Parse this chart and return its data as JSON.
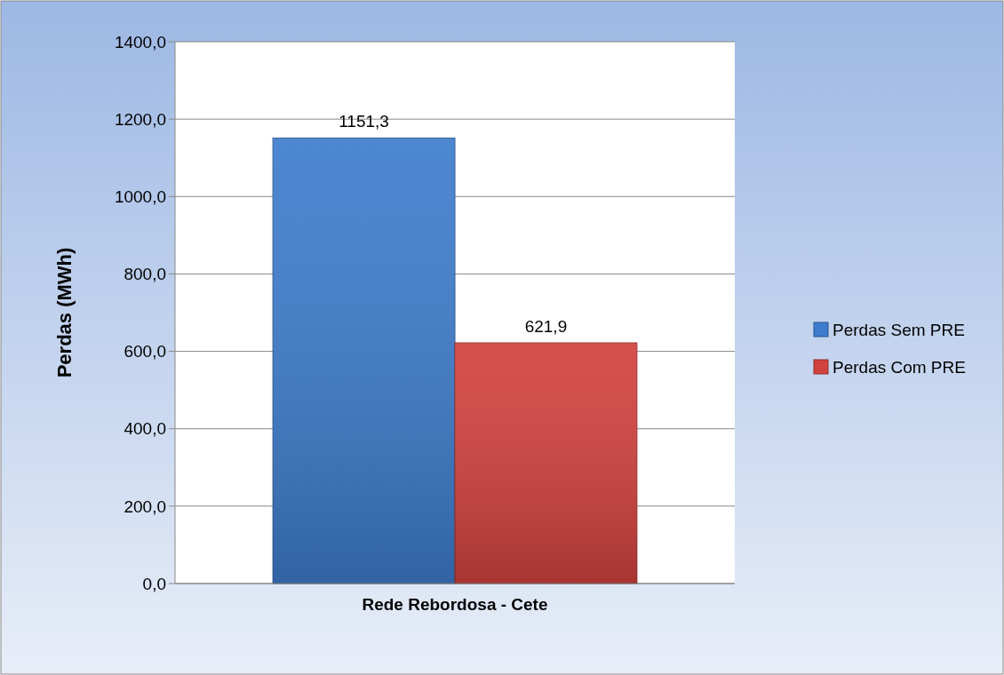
{
  "chart_data": {
    "type": "bar",
    "ylabel": "Perdas (MWh)",
    "categories": [
      "Rede Rebordosa - Cete"
    ],
    "series": [
      {
        "name": "Perdas Sem PRE",
        "color": "#3d7ccc",
        "values": [
          1151.3
        ],
        "value_labels": [
          "1151,3"
        ]
      },
      {
        "name": "Perdas Com PRE",
        "color": "#d1413d",
        "values": [
          621.9
        ],
        "value_labels": [
          "621,9"
        ]
      }
    ],
    "ylim": [
      0,
      1400
    ],
    "yticks": [
      {
        "value": 0,
        "label": "0,0"
      },
      {
        "value": 200,
        "label": "200,0"
      },
      {
        "value": 400,
        "label": "400,0"
      },
      {
        "value": 600,
        "label": "600,0"
      },
      {
        "value": 800,
        "label": "800,0"
      },
      {
        "value": 1000,
        "label": "1000,0"
      },
      {
        "value": 1200,
        "label": "1200,0"
      },
      {
        "value": 1400,
        "label": "1400,0"
      }
    ],
    "grid": "y",
    "legend": "right"
  }
}
